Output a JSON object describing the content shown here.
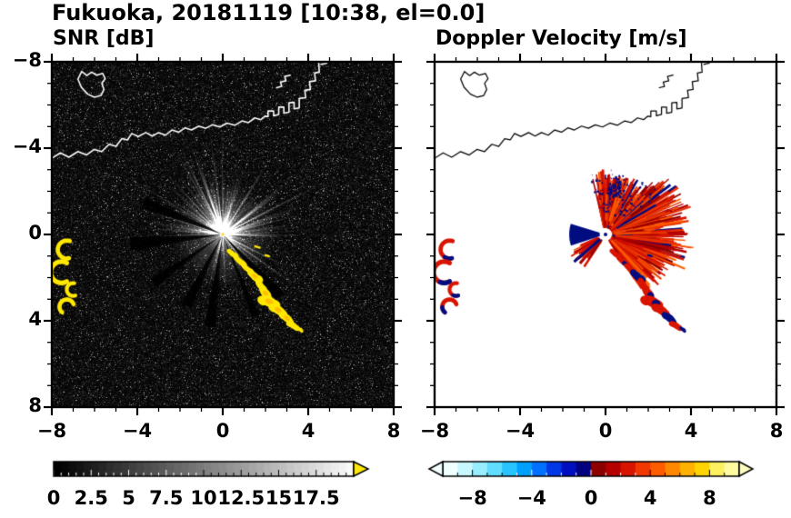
{
  "title": "Fukuoka, 20181119 [10:38, el=0.0]",
  "panels": [
    {
      "id": "snr",
      "label": "SNR [dB]",
      "axis": {
        "range": [
          -8,
          8
        ],
        "major_ticks": [
          -8,
          -4,
          0,
          4,
          8
        ],
        "major_tick_labels": [
          "−8",
          "−4",
          "0",
          "4",
          "8"
        ],
        "y_tick_labels": [
          "8",
          "4",
          "0",
          "−4",
          "−8"
        ],
        "minor_step": 1
      },
      "colorbar": {
        "style": "grayscale",
        "range": [
          0,
          20
        ],
        "tick_values": [
          0,
          2.5,
          5,
          7.5,
          10,
          12.5,
          15,
          17.5
        ],
        "tick_labels": [
          "0",
          "2.5",
          "5",
          "7.5",
          "10",
          "12.5",
          "15",
          "17.5"
        ],
        "minor_step": 0.5,
        "over_arrow_color": "#ffe80a"
      }
    },
    {
      "id": "velocity",
      "label": "Doppler Velocity [m/s]",
      "axis": {
        "range": [
          -8,
          8
        ],
        "major_ticks": [
          -8,
          -4,
          0,
          4,
          8
        ],
        "major_tick_labels": [
          "−8",
          "−4",
          "0",
          "4",
          "8"
        ],
        "y_tick_labels": [],
        "minor_step": 1
      },
      "colorbar": {
        "style": "segmented",
        "range": [
          -10,
          10
        ],
        "tick_values": [
          -8,
          -4,
          0,
          4,
          8
        ],
        "tick_labels": [
          "−8",
          "−4",
          "0",
          "4",
          "8"
        ],
        "minor_step": 1,
        "under_arrow_color": "#f2ffff",
        "over_arrow_color": "#ffffc2",
        "segments": [
          "#f0ffff",
          "#c8f8ff",
          "#98eeff",
          "#60ddff",
          "#28c4ff",
          "#00a0ff",
          "#0070ff",
          "#0038e8",
          "#0010c0",
          "#000080",
          "#8c0000",
          "#b40000",
          "#d81400",
          "#f03800",
          "#ff5c00",
          "#ff8800",
          "#ffb000",
          "#ffd400",
          "#fff060",
          "#fffca0"
        ]
      }
    }
  ],
  "chart_data": {
    "type": "heatmap",
    "title": "Fukuoka, 20181119 [10:38, el=0.0]",
    "site": "Fukuoka",
    "date": "20181119",
    "time": "10:38",
    "elevation": 0.0,
    "panels": [
      {
        "name": "SNR",
        "units": "dB",
        "colorbar_range": [
          0,
          20
        ],
        "background": "noise-black"
      },
      {
        "name": "Doppler Velocity",
        "units": "m/s",
        "colorbar_range": [
          -10,
          10
        ],
        "background": "white"
      }
    ],
    "axis_range": {
      "x": [
        -8,
        8
      ],
      "y": [
        -8,
        8
      ]
    },
    "radar_site": [
      0,
      0
    ],
    "coastline": [
      {
        "name": "main-coast",
        "closed": false,
        "points": [
          [
            -8.05,
            3.5
          ],
          [
            -7.6,
            3.78
          ],
          [
            -7.2,
            3.58
          ],
          [
            -6.78,
            3.84
          ],
          [
            -6.38,
            3.68
          ],
          [
            -6.02,
            3.94
          ],
          [
            -5.66,
            3.84
          ],
          [
            -5.32,
            4.18
          ],
          [
            -5.0,
            4.08
          ],
          [
            -4.72,
            4.44
          ],
          [
            -4.46,
            4.38
          ],
          [
            -4.26,
            4.68
          ],
          [
            -3.96,
            4.54
          ],
          [
            -3.6,
            4.72
          ],
          [
            -3.3,
            4.56
          ],
          [
            -3.0,
            4.72
          ],
          [
            -2.68,
            4.6
          ],
          [
            -2.38,
            4.84
          ],
          [
            -2.06,
            4.74
          ],
          [
            -1.76,
            4.94
          ],
          [
            -1.46,
            4.84
          ],
          [
            -1.12,
            5.02
          ],
          [
            -0.8,
            4.92
          ],
          [
            -0.48,
            5.08
          ],
          [
            -0.14,
            4.98
          ],
          [
            0.2,
            5.16
          ],
          [
            0.56,
            5.06
          ],
          [
            0.9,
            5.26
          ],
          [
            1.2,
            5.18
          ],
          [
            1.5,
            5.4
          ],
          [
            1.78,
            5.32
          ],
          [
            1.98,
            5.48
          ],
          [
            2.12,
            5.46
          ],
          [
            2.12,
            5.72
          ],
          [
            2.38,
            5.72
          ],
          [
            2.38,
            5.5
          ],
          [
            2.62,
            5.56
          ],
          [
            2.62,
            5.9
          ],
          [
            2.86,
            5.9
          ],
          [
            2.86,
            5.62
          ],
          [
            3.1,
            5.66
          ],
          [
            3.1,
            6.1
          ],
          [
            3.34,
            6.12
          ],
          [
            3.34,
            5.82
          ],
          [
            3.58,
            5.86
          ],
          [
            3.58,
            6.3
          ],
          [
            3.88,
            6.34
          ],
          [
            3.84,
            6.68
          ],
          [
            4.1,
            6.72
          ],
          [
            4.06,
            7.08
          ],
          [
            4.34,
            7.12
          ],
          [
            4.3,
            7.48
          ],
          [
            4.52,
            7.52
          ],
          [
            4.48,
            8.1
          ]
        ]
      },
      {
        "name": "island",
        "closed": true,
        "points": [
          [
            -6.6,
            7.55
          ],
          [
            -6.78,
            7.2
          ],
          [
            -6.62,
            6.82
          ],
          [
            -6.32,
            6.5
          ],
          [
            -6.0,
            6.36
          ],
          [
            -5.7,
            6.44
          ],
          [
            -5.56,
            6.72
          ],
          [
            -5.66,
            7.0
          ],
          [
            -5.5,
            7.22
          ],
          [
            -5.62,
            7.46
          ],
          [
            -5.9,
            7.38
          ],
          [
            -6.14,
            7.52
          ],
          [
            -6.36,
            7.36
          ]
        ]
      },
      {
        "name": "breakwater-1",
        "closed": false,
        "points": [
          [
            2.52,
            6.8
          ],
          [
            2.76,
            6.86
          ],
          [
            2.7,
            7.06
          ],
          [
            2.96,
            7.12
          ],
          [
            2.9,
            7.32
          ],
          [
            3.16,
            7.38
          ]
        ]
      },
      {
        "name": "breakwater-2",
        "closed": false,
        "points": [
          [
            4.6,
            7.88
          ],
          [
            4.86,
            7.94
          ],
          [
            4.82,
            8.1
          ]
        ]
      }
    ],
    "echoes": {
      "left_arcs": [
        {
          "x": -7.3,
          "y": -0.7,
          "r": 0.42,
          "a0": 70,
          "a1": 285,
          "w": 0.2
        },
        {
          "x": -7.55,
          "y": -1.75,
          "r": 0.5,
          "a0": 60,
          "a1": 300,
          "w": 0.22
        },
        {
          "x": -7.0,
          "y": -2.55,
          "r": 0.3,
          "a0": 80,
          "a1": 290,
          "w": 0.18
        },
        {
          "x": -7.3,
          "y": -3.35,
          "r": 0.34,
          "a0": 20,
          "a1": 230,
          "w": 0.2
        }
      ],
      "chain": [
        {
          "x": 0.45,
          "y": -0.9,
          "rx": 0.25,
          "ry": 0.12,
          "rot": 42,
          "vc": "r"
        },
        {
          "x": 0.8,
          "y": -1.25,
          "rx": 0.3,
          "ry": 0.13,
          "rot": 45,
          "vc": "m"
        },
        {
          "x": 1.15,
          "y": -1.6,
          "rx": 0.28,
          "ry": 0.12,
          "rot": 42,
          "vc": "r"
        },
        {
          "x": 1.5,
          "y": -1.95,
          "rx": 0.35,
          "ry": 0.17,
          "rot": 45,
          "vc": "n"
        },
        {
          "x": 1.75,
          "y": -2.35,
          "rx": 0.3,
          "ry": 0.15,
          "rot": 50,
          "vc": "r"
        },
        {
          "x": 2.0,
          "y": -2.72,
          "rx": 0.34,
          "ry": 0.19,
          "rot": 45,
          "vc": "m"
        },
        {
          "x": 2.18,
          "y": -3.12,
          "rx": 0.45,
          "ry": 0.24,
          "rot": 28,
          "vc": "m"
        },
        {
          "x": 2.6,
          "y": -3.5,
          "rx": 0.4,
          "ry": 0.2,
          "rot": 35,
          "vc": "r"
        },
        {
          "x": 3.0,
          "y": -3.88,
          "rx": 0.34,
          "ry": 0.17,
          "rot": 40,
          "vc": "n"
        },
        {
          "x": 3.3,
          "y": -4.22,
          "rx": 0.28,
          "ry": 0.14,
          "rot": 35,
          "vc": "r"
        },
        {
          "x": 3.62,
          "y": -4.4,
          "rx": 0.15,
          "ry": 0.08,
          "rot": 30,
          "vc": "n"
        },
        {
          "x": 1.62,
          "y": -0.58,
          "rx": 0.13,
          "ry": 0.05,
          "rot": 25,
          "vc": "r"
        },
        {
          "x": 2.08,
          "y": -0.98,
          "rx": 0.11,
          "ry": 0.05,
          "rot": 25,
          "vc": "n"
        }
      ]
    },
    "snr_fan": {
      "rays": 150,
      "ray_len": [
        25,
        95
      ],
      "long_rays": 10,
      "glow_radius_px": 58,
      "dark_spokes": [
        158,
        186,
        215,
        243,
        262,
        292,
        313
      ],
      "echo_color": "#ffe800",
      "echo_core_color": "#ff9900"
    },
    "vel_fan": {
      "angle_range": [
        -58,
        103
      ],
      "streaks": 800,
      "streak_colors": [
        "#8c0000",
        "#b40000",
        "#d81400",
        "#e63000",
        "#f04800",
        "#ff5c00",
        "#b40000",
        "#d81400"
      ],
      "negative_color": "#000d80",
      "positive_color": "#d81400",
      "negative_wedge": {
        "a0": 163,
        "a1": 198,
        "r": 1.7
      },
      "neg_streak": {
        "angle": 221,
        "r": 1.95
      },
      "downleft_red_range": [
        203,
        237
      ]
    }
  }
}
